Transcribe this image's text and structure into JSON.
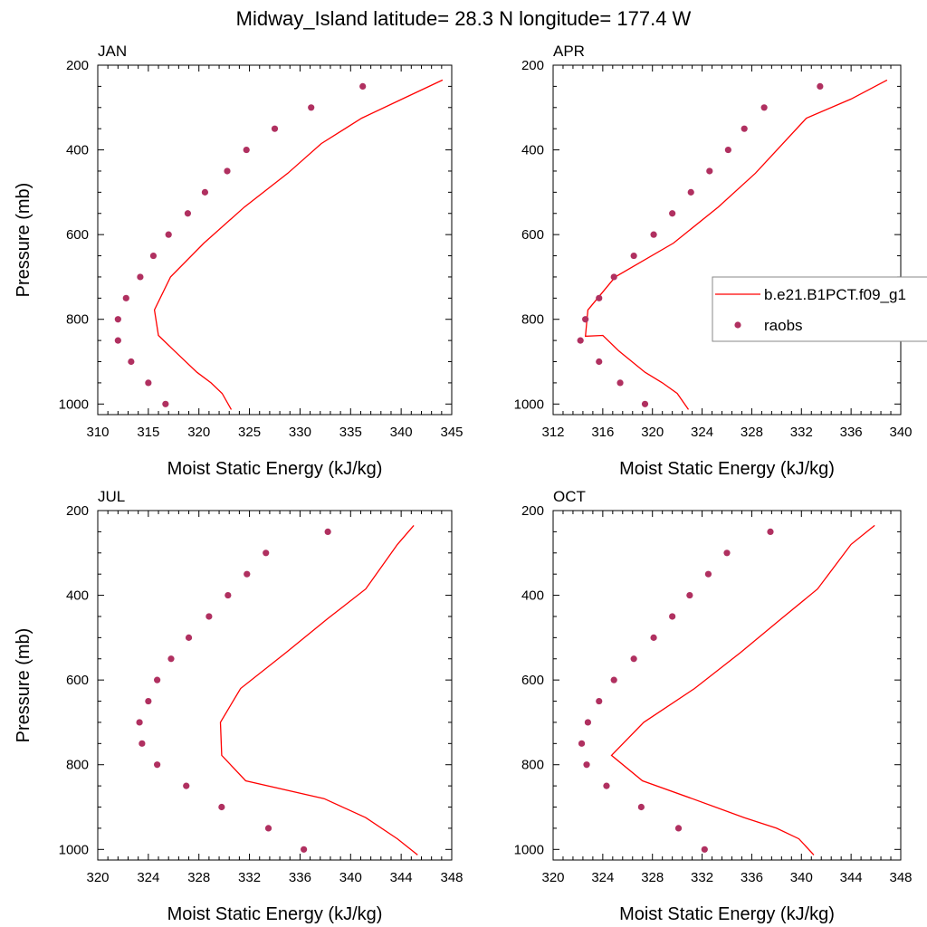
{
  "figure": {
    "title": "Midway_Island  latitude= 28.3 N longitude= 177.4 W"
  },
  "legend": {
    "entries": [
      {
        "label": "b.e21.B1PCT.f09_g1",
        "kind": "line",
        "color": "#ff0000"
      },
      {
        "label": "raobs",
        "kind": "marker",
        "color": "#b03060"
      }
    ],
    "placement": "right, inside APR panel"
  },
  "colors": {
    "model_line": "#ff0000",
    "obs_marker": "#b03060"
  },
  "chart_data": [
    {
      "type": "line",
      "title": "JAN",
      "xlabel": "Moist Static Energy (kJ/kg)",
      "ylabel": "Pressure (mb)",
      "xlim": [
        310,
        345
      ],
      "ylim": [
        1025,
        200
      ],
      "xticks": [
        310,
        315,
        320,
        325,
        330,
        335,
        340,
        345
      ],
      "yticks": [
        200,
        400,
        600,
        800,
        1000
      ],
      "grid": false,
      "series": [
        {
          "name": "b.e21.B1PCT.f09_g1",
          "kind": "line",
          "x": [
            323.2,
            322.3,
            321.2,
            319.8,
            317.6,
            316.0,
            315.6,
            317.2,
            320.5,
            324.5,
            328.8,
            332.1,
            336.1,
            340.1,
            344.1
          ],
          "y": [
            1013,
            975,
            950,
            925,
            875,
            838,
            778,
            700,
            620,
            535,
            455,
            385,
            325,
            280,
            235
          ]
        },
        {
          "name": "raobs",
          "kind": "marker",
          "x": [
            316.7,
            315.0,
            313.3,
            312.0,
            312.0,
            312.8,
            314.2,
            315.5,
            317.0,
            318.9,
            320.6,
            322.8,
            324.7,
            327.5,
            331.1,
            336.2
          ],
          "y": [
            1000,
            950,
            900,
            850,
            800,
            750,
            700,
            650,
            600,
            550,
            500,
            450,
            400,
            350,
            300,
            250
          ]
        }
      ]
    },
    {
      "type": "line",
      "title": "APR",
      "xlabel": "Moist Static Energy (kJ/kg)",
      "ylabel": "",
      "xlim": [
        312,
        340
      ],
      "ylim": [
        1025,
        200
      ],
      "xticks": [
        312,
        316,
        320,
        324,
        328,
        332,
        336,
        340
      ],
      "yticks": [
        200,
        400,
        600,
        800,
        1000
      ],
      "grid": false,
      "series": [
        {
          "name": "b.e21.B1PCT.f09_g1",
          "kind": "line",
          "x": [
            322.9,
            322.0,
            320.8,
            319.4,
            317.3,
            316.0,
            314.6,
            314.8,
            317.0,
            321.7,
            325.3,
            328.3,
            332.4,
            336.0,
            338.9
          ],
          "y": [
            1013,
            975,
            950,
            925,
            875,
            838,
            840,
            778,
            700,
            620,
            535,
            455,
            325,
            280,
            235
          ]
        },
        {
          "name": "raobs",
          "kind": "marker",
          "x": [
            319.4,
            317.4,
            315.7,
            314.2,
            314.6,
            315.7,
            316.9,
            318.5,
            320.1,
            321.6,
            323.1,
            324.6,
            326.1,
            327.4,
            329.0,
            333.5
          ],
          "y": [
            1000,
            950,
            900,
            850,
            800,
            750,
            700,
            650,
            600,
            550,
            500,
            450,
            400,
            350,
            300,
            250
          ]
        }
      ]
    },
    {
      "type": "line",
      "title": "JUL",
      "xlabel": "Moist Static Energy (kJ/kg)",
      "ylabel": "Pressure (mb)",
      "xlim": [
        320,
        348
      ],
      "ylim": [
        1025,
        200
      ],
      "xticks": [
        320,
        324,
        328,
        332,
        336,
        340,
        344,
        348
      ],
      "yticks": [
        200,
        400,
        600,
        800,
        1000
      ],
      "grid": false,
      "series": [
        {
          "name": "b.e21.B1PCT.f09_g1",
          "kind": "line",
          "x": [
            345.3,
            343.7,
            341.2,
            337.9,
            331.7,
            329.8,
            329.7,
            331.3,
            334.9,
            338.2,
            341.2,
            343.7,
            345.0
          ],
          "y": [
            1013,
            975,
            925,
            880,
            838,
            778,
            700,
            620,
            535,
            455,
            385,
            280,
            235
          ]
        },
        {
          "name": "raobs",
          "kind": "marker",
          "x": [
            336.3,
            333.5,
            329.8,
            327.0,
            324.7,
            323.5,
            323.3,
            324.0,
            324.7,
            325.8,
            327.2,
            328.8,
            330.3,
            331.8,
            333.3,
            338.2
          ],
          "y": [
            1000,
            950,
            900,
            850,
            800,
            750,
            700,
            650,
            600,
            550,
            500,
            450,
            400,
            350,
            300,
            250
          ]
        }
      ]
    },
    {
      "type": "line",
      "title": "OCT",
      "xlabel": "Moist Static Energy (kJ/kg)",
      "ylabel": "",
      "xlim": [
        320,
        348
      ],
      "ylim": [
        1025,
        200
      ],
      "xticks": [
        320,
        324,
        328,
        332,
        336,
        340,
        344,
        348
      ],
      "yticks": [
        200,
        400,
        600,
        800,
        1000
      ],
      "grid": false,
      "series": [
        {
          "name": "b.e21.B1PCT.f09_g1",
          "kind": "line",
          "x": [
            341.0,
            339.8,
            338.0,
            335.4,
            331.2,
            327.2,
            324.7,
            327.3,
            331.4,
            335.1,
            338.4,
            341.3,
            344.0,
            345.9
          ],
          "y": [
            1013,
            975,
            950,
            925,
            880,
            838,
            778,
            700,
            620,
            535,
            455,
            385,
            280,
            235
          ]
        },
        {
          "name": "raobs",
          "kind": "marker",
          "x": [
            332.2,
            330.1,
            327.1,
            324.3,
            322.7,
            322.3,
            322.8,
            323.7,
            324.9,
            326.5,
            328.1,
            329.6,
            331.0,
            332.5,
            334.0,
            337.5
          ],
          "y": [
            1000,
            950,
            900,
            850,
            800,
            750,
            700,
            650,
            600,
            550,
            500,
            450,
            400,
            350,
            300,
            250
          ]
        }
      ]
    }
  ]
}
